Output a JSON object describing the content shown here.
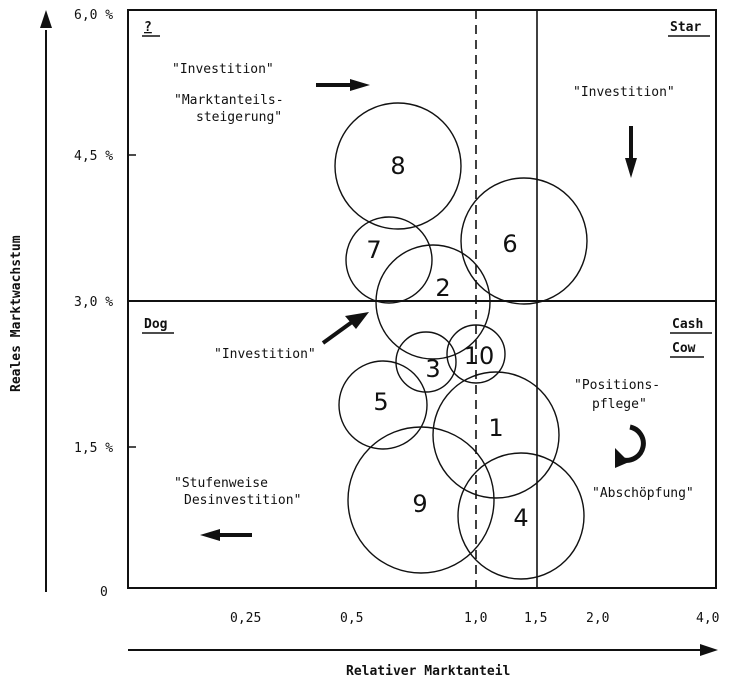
{
  "chart_data": {
    "type": "bubble",
    "xlabel": "Relativer Marktanteil",
    "ylabel": "Reales Marktwachstum",
    "x_ticks": [
      "0,25",
      "0,5",
      "1,0",
      "1,5",
      "2,0",
      "4,0"
    ],
    "y_ticks": [
      "6,0 %",
      "4,5 %",
      "3,0 %",
      "1,5 %",
      "0"
    ],
    "quadrants": {
      "question": "?",
      "star": "Star",
      "dog": "Dog",
      "cash": "Cash",
      "cow": "Cow"
    },
    "annotations": {
      "q_investition": "\"Investition\"",
      "q_markt_1": "\"Marktanteils-",
      "q_markt_2": "steigerung\"",
      "star_investition": "\"Investition\"",
      "dog_investition": "\"Investition\"",
      "cow_pos_1": "\"Positions-",
      "cow_pos_2": "pflege\"",
      "cow_abschoepfung": "\"Abschöpfung\"",
      "dog_stuf_1": "\"Stufenweise",
      "dog_stuf_2": "Desinvestition\""
    },
    "bubbles": [
      {
        "label": "1",
        "rel_share": 1.2,
        "growth": 1.6
      },
      {
        "label": "2",
        "rel_share": 0.75,
        "growth": 3.1
      },
      {
        "label": "3",
        "rel_share": 0.7,
        "growth": 2.3
      },
      {
        "label": "4",
        "rel_share": 1.45,
        "growth": 0.75
      },
      {
        "label": "5",
        "rel_share": 0.55,
        "growth": 1.95
      },
      {
        "label": "6",
        "rel_share": 1.45,
        "growth": 3.55
      },
      {
        "label": "7",
        "rel_share": 0.6,
        "growth": 3.4
      },
      {
        "label": "8",
        "rel_share": 0.63,
        "growth": 4.4
      },
      {
        "label": "9",
        "rel_share": 0.8,
        "growth": 0.9
      },
      {
        "label": "10",
        "rel_share": 1.0,
        "growth": 2.4
      }
    ]
  }
}
